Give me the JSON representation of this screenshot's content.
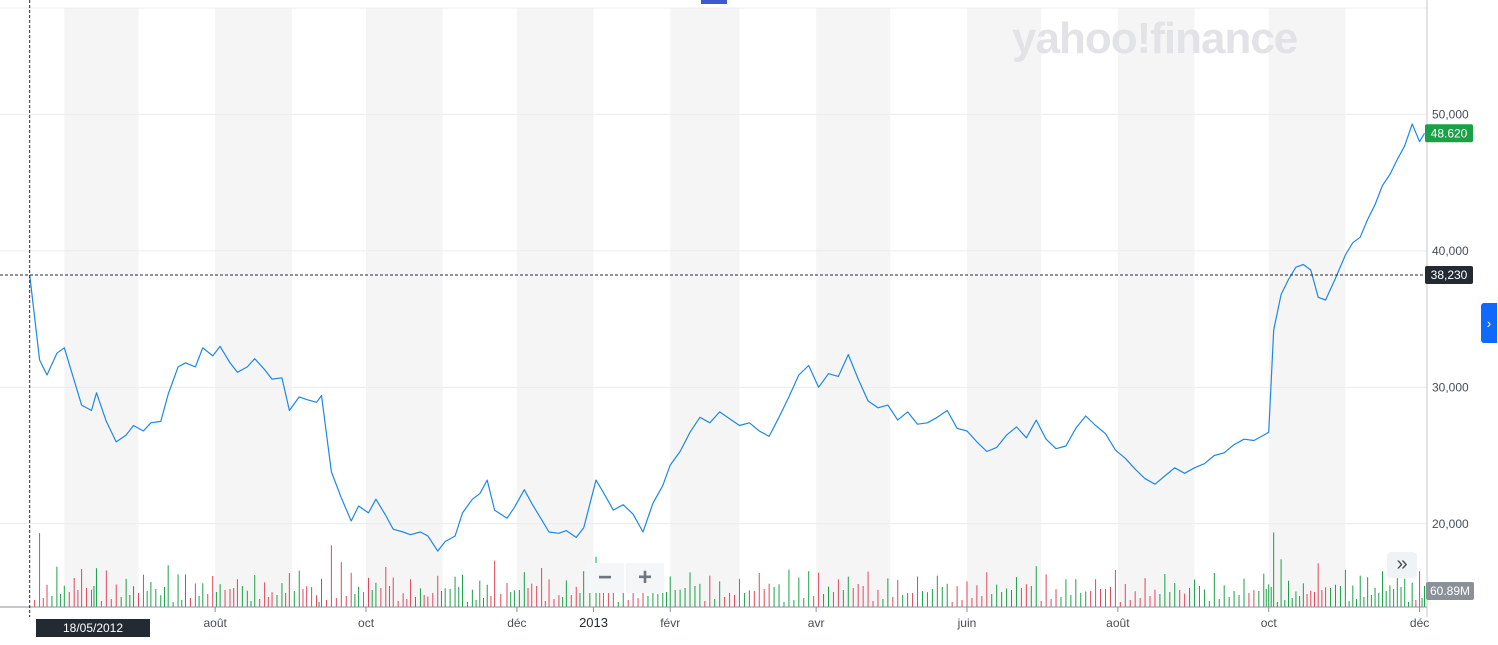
{
  "watermark": "yahoo!finance",
  "crosshair_date": "18/05/2012",
  "crosshair_price": "38,230",
  "last_price": "48.620",
  "volume_label": "60.89M",
  "controls": {
    "zoom_out": "−",
    "zoom_in": "+",
    "expand": "»",
    "side_tab": "›"
  },
  "colors": {
    "line": "#1e88e5",
    "up": "#1aa148",
    "down": "#e0475d",
    "last_tag": "#1aa148",
    "cross_tag": "#232a31",
    "band": "#f5f5f5",
    "accent": "#3d5bd0"
  },
  "chart_data": {
    "type": "line",
    "title": "",
    "xlabel": "",
    "ylabel": "",
    "y_ticks": [
      "20,000",
      "30,000",
      "40,000",
      "50,000"
    ],
    "y_tick_values": [
      20000,
      30000,
      40000,
      50000
    ],
    "ylim": [
      13900,
      57800
    ],
    "x_ticks": [
      {
        "label": "août",
        "date": "2012-08-01"
      },
      {
        "label": "oct",
        "date": "2012-10-01"
      },
      {
        "label": "déc",
        "date": "2012-12-01"
      },
      {
        "label": "2013",
        "date": "2013-01-01",
        "strong": true
      },
      {
        "label": "févr",
        "date": "2013-02-01"
      },
      {
        "label": "avr",
        "date": "2013-04-01"
      },
      {
        "label": "juin",
        "date": "2013-06-01"
      },
      {
        "label": "août",
        "date": "2013-08-01"
      },
      {
        "label": "oct",
        "date": "2013-10-01"
      },
      {
        "label": "déc",
        "date": "2013-12-01"
      }
    ],
    "xlim": [
      "2012-05-06",
      "2013-12-04"
    ],
    "grid": true,
    "legend": "none",
    "series": [
      {
        "points": [
          [
            "2012-05-18",
            38230
          ],
          [
            "2012-05-22",
            32000
          ],
          [
            "2012-05-25",
            30900
          ],
          [
            "2012-05-29",
            32500
          ],
          [
            "2012-06-01",
            32900
          ],
          [
            "2012-06-05",
            30500
          ],
          [
            "2012-06-08",
            28700
          ],
          [
            "2012-06-12",
            28300
          ],
          [
            "2012-06-14",
            29600
          ],
          [
            "2012-06-18",
            27500
          ],
          [
            "2012-06-22",
            26000
          ],
          [
            "2012-06-26",
            26500
          ],
          [
            "2012-06-29",
            27200
          ],
          [
            "2012-07-03",
            26800
          ],
          [
            "2012-07-06",
            27400
          ],
          [
            "2012-07-10",
            27500
          ],
          [
            "2012-07-13",
            29500
          ],
          [
            "2012-07-17",
            31500
          ],
          [
            "2012-07-20",
            31800
          ],
          [
            "2012-07-24",
            31500
          ],
          [
            "2012-07-27",
            32900
          ],
          [
            "2012-07-31",
            32300
          ],
          [
            "2012-08-03",
            33000
          ],
          [
            "2012-08-07",
            31800
          ],
          [
            "2012-08-10",
            31100
          ],
          [
            "2012-08-14",
            31500
          ],
          [
            "2012-08-17",
            32100
          ],
          [
            "2012-08-21",
            31300
          ],
          [
            "2012-08-24",
            30600
          ],
          [
            "2012-08-28",
            30700
          ],
          [
            "2012-08-31",
            28300
          ],
          [
            "2012-09-04",
            29300
          ],
          [
            "2012-09-07",
            29100
          ],
          [
            "2012-09-11",
            28900
          ],
          [
            "2012-09-13",
            29400
          ],
          [
            "2012-09-17",
            23800
          ],
          [
            "2012-09-21",
            21900
          ],
          [
            "2012-09-25",
            20200
          ],
          [
            "2012-09-28",
            21300
          ],
          [
            "2012-10-02",
            20800
          ],
          [
            "2012-10-05",
            21800
          ],
          [
            "2012-10-09",
            20600
          ],
          [
            "2012-10-12",
            19600
          ],
          [
            "2012-10-16",
            19400
          ],
          [
            "2012-10-19",
            19200
          ],
          [
            "2012-10-23",
            19400
          ],
          [
            "2012-10-26",
            19100
          ],
          [
            "2012-10-30",
            18000
          ],
          [
            "2012-11-02",
            18700
          ],
          [
            "2012-11-06",
            19100
          ],
          [
            "2012-11-09",
            20800
          ],
          [
            "2012-11-13",
            21800
          ],
          [
            "2012-11-16",
            22200
          ],
          [
            "2012-11-19",
            23200
          ],
          [
            "2012-11-22",
            21000
          ],
          [
            "2012-11-27",
            20400
          ],
          [
            "2012-11-30",
            21200
          ],
          [
            "2012-12-04",
            22500
          ],
          [
            "2012-12-07",
            21500
          ],
          [
            "2012-12-11",
            20300
          ],
          [
            "2012-12-14",
            19400
          ],
          [
            "2012-12-18",
            19300
          ],
          [
            "2012-12-21",
            19500
          ],
          [
            "2012-12-25",
            19000
          ],
          [
            "2012-12-28",
            19700
          ],
          [
            "2013-01-02",
            23200
          ],
          [
            "2013-01-05",
            22300
          ],
          [
            "2013-01-09",
            21000
          ],
          [
            "2013-01-13",
            21400
          ],
          [
            "2013-01-17",
            20700
          ],
          [
            "2013-01-21",
            19400
          ],
          [
            "2013-01-25",
            21500
          ],
          [
            "2013-01-29",
            22800
          ],
          [
            "2013-02-01",
            24300
          ],
          [
            "2013-02-05",
            25300
          ],
          [
            "2013-02-09",
            26700
          ],
          [
            "2013-02-13",
            27800
          ],
          [
            "2013-02-17",
            27400
          ],
          [
            "2013-02-21",
            28200
          ],
          [
            "2013-02-25",
            27700
          ],
          [
            "2013-03-01",
            27200
          ],
          [
            "2013-03-05",
            27400
          ],
          [
            "2013-03-09",
            26800
          ],
          [
            "2013-03-13",
            26400
          ],
          [
            "2013-03-17",
            27800
          ],
          [
            "2013-03-21",
            29300
          ],
          [
            "2013-03-25",
            30900
          ],
          [
            "2013-03-29",
            31600
          ],
          [
            "2013-04-02",
            30000
          ],
          [
            "2013-04-06",
            31000
          ],
          [
            "2013-04-10",
            30800
          ],
          [
            "2013-04-14",
            32400
          ],
          [
            "2013-04-18",
            30600
          ],
          [
            "2013-04-22",
            29000
          ],
          [
            "2013-04-26",
            28500
          ],
          [
            "2013-04-30",
            28700
          ],
          [
            "2013-05-04",
            27600
          ],
          [
            "2013-05-08",
            28200
          ],
          [
            "2013-05-12",
            27300
          ],
          [
            "2013-05-16",
            27400
          ],
          [
            "2013-05-20",
            27800
          ],
          [
            "2013-05-24",
            28300
          ],
          [
            "2013-05-28",
            27000
          ],
          [
            "2013-06-01",
            26800
          ],
          [
            "2013-06-05",
            26000
          ],
          [
            "2013-06-09",
            25300
          ],
          [
            "2013-06-13",
            25600
          ],
          [
            "2013-06-17",
            26500
          ],
          [
            "2013-06-21",
            27100
          ],
          [
            "2013-06-25",
            26300
          ],
          [
            "2013-06-29",
            27600
          ],
          [
            "2013-07-03",
            26200
          ],
          [
            "2013-07-07",
            25500
          ],
          [
            "2013-07-11",
            25700
          ],
          [
            "2013-07-15",
            27000
          ],
          [
            "2013-07-19",
            27900
          ],
          [
            "2013-07-23",
            27200
          ],
          [
            "2013-07-27",
            26600
          ],
          [
            "2013-07-31",
            25400
          ],
          [
            "2013-08-04",
            24800
          ],
          [
            "2013-08-08",
            24000
          ],
          [
            "2013-08-12",
            23300
          ],
          [
            "2013-08-16",
            22900
          ],
          [
            "2013-08-20",
            23500
          ],
          [
            "2013-08-24",
            24100
          ],
          [
            "2013-08-28",
            23700
          ],
          [
            "2013-09-01",
            24100
          ],
          [
            "2013-09-05",
            24400
          ],
          [
            "2013-09-09",
            25000
          ],
          [
            "2013-09-13",
            25200
          ],
          [
            "2013-09-17",
            25800
          ],
          [
            "2013-09-21",
            26200
          ],
          [
            "2013-09-25",
            26100
          ],
          [
            "2013-09-29",
            26500
          ],
          [
            "2013-10-01",
            26700
          ],
          [
            "2013-10-03",
            34200
          ],
          [
            "2013-10-06",
            36800
          ],
          [
            "2013-10-09",
            37900
          ],
          [
            "2013-10-12",
            38800
          ],
          [
            "2013-10-15",
            39000
          ],
          [
            "2013-10-18",
            38600
          ],
          [
            "2013-10-21",
            36600
          ],
          [
            "2013-10-24",
            36400
          ],
          [
            "2013-10-28",
            38000
          ],
          [
            "2013-11-01",
            39700
          ],
          [
            "2013-11-04",
            40600
          ],
          [
            "2013-11-07",
            41000
          ],
          [
            "2013-11-10",
            42300
          ],
          [
            "2013-11-13",
            43400
          ],
          [
            "2013-11-16",
            44800
          ],
          [
            "2013-11-19",
            45600
          ],
          [
            "2013-11-22",
            46700
          ],
          [
            "2013-11-25",
            47700
          ],
          [
            "2013-11-28",
            49300
          ],
          [
            "2013-12-01",
            48000
          ],
          [
            "2013-12-03",
            48620
          ]
        ]
      }
    ],
    "volume": {
      "label": "60.89M",
      "note": "daily volume bars, green = up day, red = down day"
    }
  }
}
